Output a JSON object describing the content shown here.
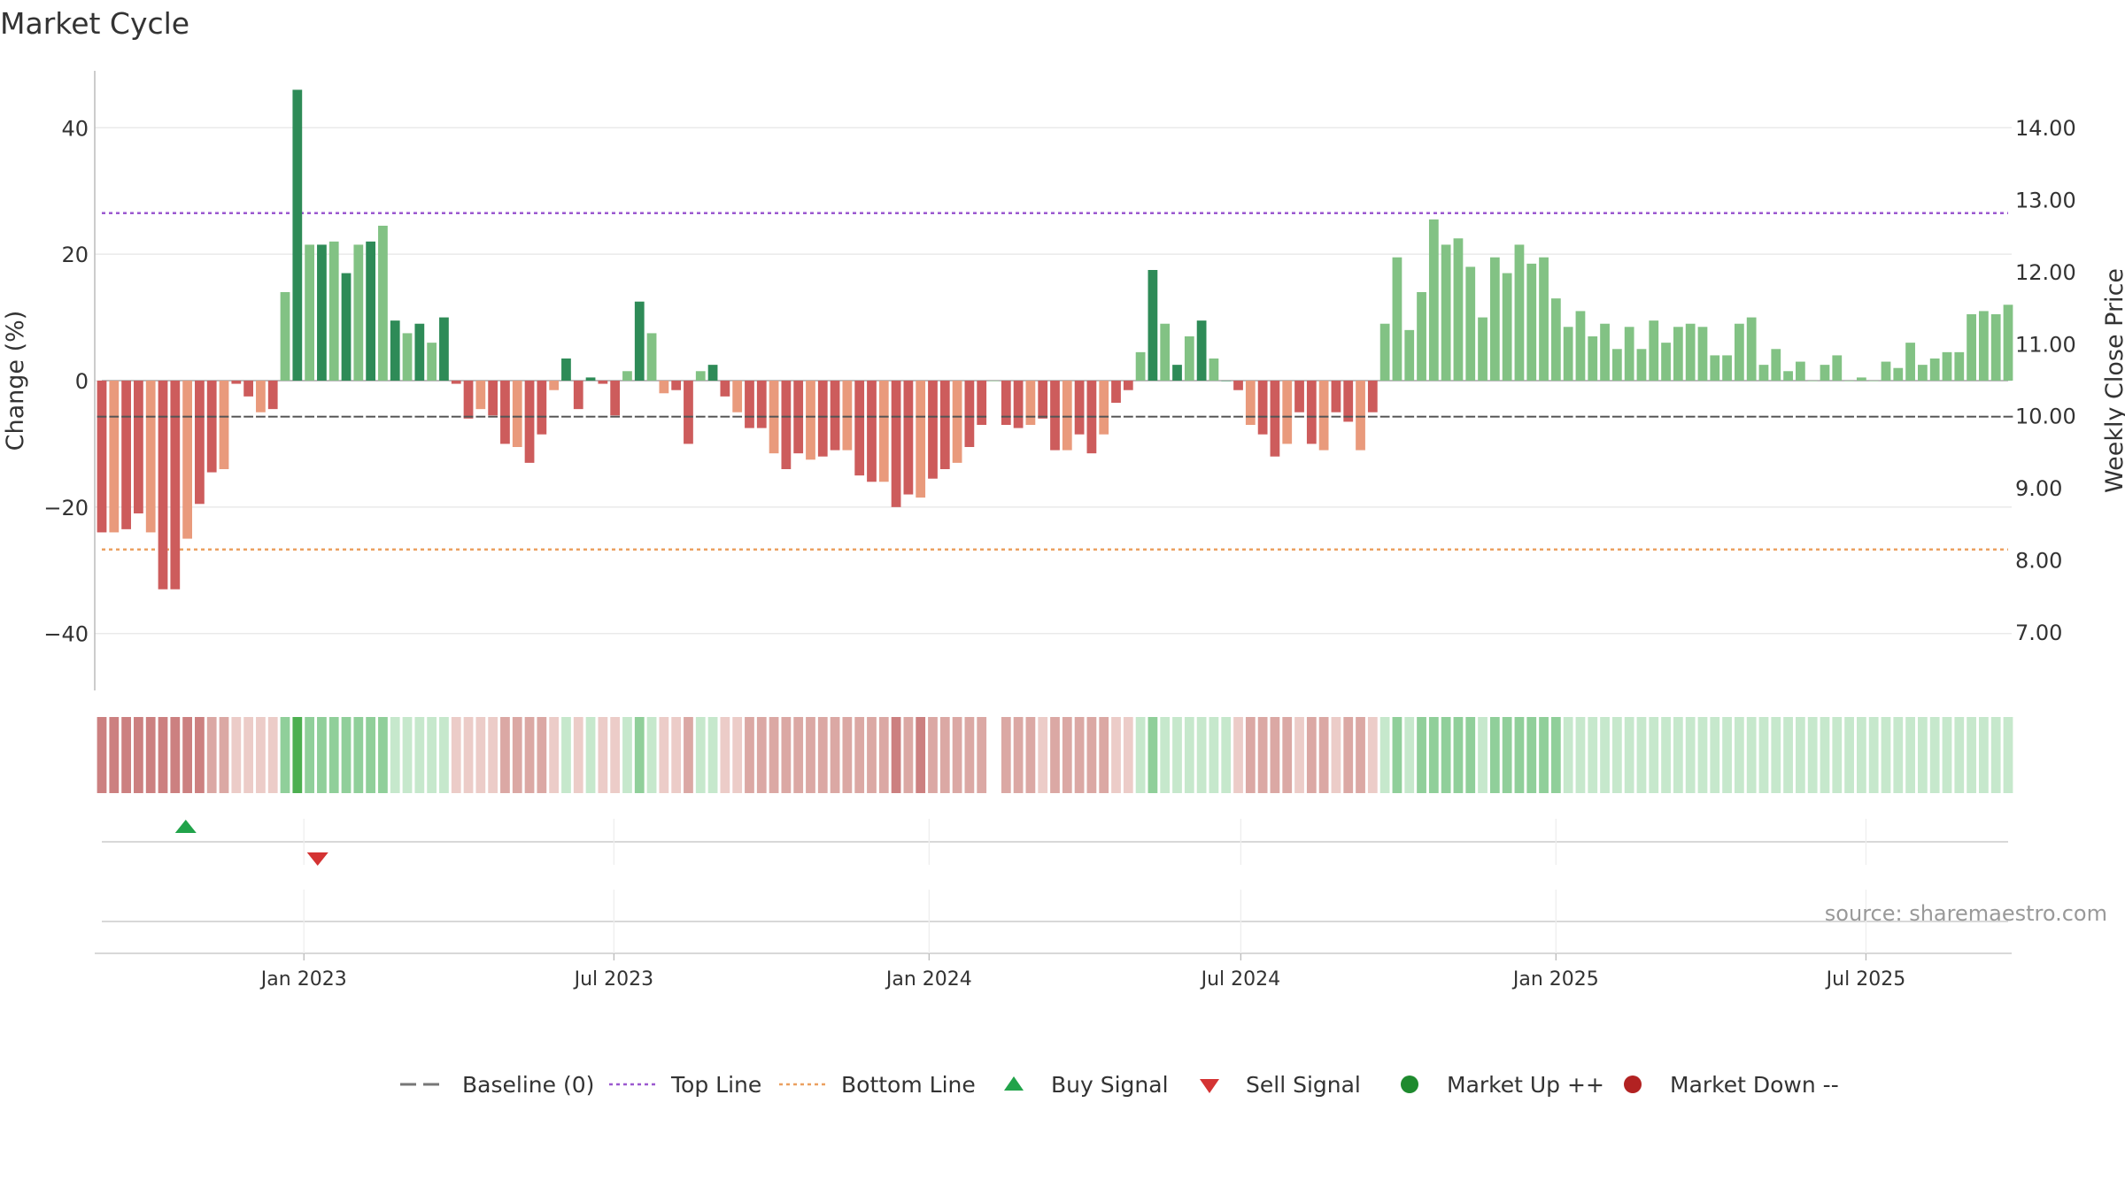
{
  "page": {
    "title": "Market Cycle"
  },
  "chart_data": {
    "type": "bar",
    "title": "Market Cycle",
    "ylabel": "Change (%)",
    "y2label": "Weekly Close Price",
    "ylim": [
      -49,
      49
    ],
    "y2lim": [
      6.2,
      14.8
    ],
    "yticks": [
      40,
      20,
      0,
      -20,
      -40
    ],
    "yticks_labels": [
      "40",
      "20",
      "0",
      "−20",
      "−40"
    ],
    "y2ticks": [
      14,
      13,
      12,
      11,
      10,
      9,
      8,
      7
    ],
    "y2ticks_labels": [
      "14.00",
      "13.00",
      "12.00",
      "11.00",
      "10.00",
      "9.00",
      "8.00",
      "7.00"
    ],
    "x_start_date": "2022-09-05",
    "x_end_date": "2025-09-22",
    "xticks": [
      {
        "date": "2023-01-01",
        "label": "Jan 2023"
      },
      {
        "date": "2023-07-01",
        "label": "Jul 2023"
      },
      {
        "date": "2024-01-01",
        "label": "Jan 2024"
      },
      {
        "date": "2024-07-01",
        "label": "Jul 2024"
      },
      {
        "date": "2025-01-01",
        "label": "Jan 2025"
      },
      {
        "date": "2025-07-01",
        "label": "Jul 2025"
      }
    ],
    "top_line": 26.5,
    "bottom_line": -26.7,
    "baseline": 0,
    "values": [
      -24,
      -24,
      -23.5,
      -21,
      -24,
      -33,
      -33,
      -25,
      -19.5,
      -14.5,
      -14,
      -0.5,
      -2.5,
      -5,
      -4.5,
      14,
      46,
      21.5,
      21.5,
      22,
      17,
      21.5,
      22,
      24.5,
      9.5,
      7.5,
      9,
      6,
      10,
      -0.5,
      -6,
      -4.5,
      -5.5,
      -10,
      -10.5,
      -13,
      -8.5,
      -1.5,
      3.5,
      -4.5,
      0.5,
      -0.5,
      -5.5,
      1.5,
      12.5,
      7.5,
      -2,
      -1.5,
      -10,
      1.5,
      2.5,
      -2.5,
      -5,
      -7.5,
      -7.5,
      -11.5,
      -14,
      -11.5,
      -12.5,
      -12,
      -11,
      -11,
      -15,
      -16,
      -16,
      -20,
      -18,
      -18.5,
      -15.5,
      -14,
      -13,
      -10.5,
      -7,
      0,
      -7,
      -7.5,
      -7,
      -6,
      -11,
      -11,
      -8.5,
      -11.5,
      -8.5,
      -3.5,
      -1.5,
      4.5,
      17.5,
      9,
      2.5,
      7,
      9.5,
      3.5,
      0,
      -1.5,
      -7,
      -8.5,
      -12,
      -10,
      -5,
      -10,
      -11,
      -5,
      -6.5,
      -11,
      -5,
      9,
      19.5,
      8,
      14,
      25.5,
      21.5,
      22.5,
      18,
      10,
      19.5,
      17,
      21.5,
      18.5,
      19.5,
      13,
      8.5,
      11,
      7,
      9,
      5,
      8.5,
      5,
      9.5,
      6,
      8.5,
      9,
      8.5,
      4,
      4,
      9,
      10,
      2.5,
      5,
      1.5,
      3,
      0,
      2.5,
      4,
      0,
      0.5,
      0,
      3,
      2,
      6,
      2.5,
      3.5,
      4.5,
      4.5,
      10.5,
      11,
      10.5,
      12
    ],
    "price_markers": [
      10.0,
      10.0,
      10.0,
      10.0,
      10.0,
      10.0,
      10.0,
      10.0,
      10.0,
      10.0,
      10.0,
      10.0,
      10.0,
      10.0,
      10.0,
      10.0,
      10.0,
      10.0,
      10.0,
      10.0,
      10.0,
      10.0,
      10.0,
      10.0,
      10.0,
      10.0,
      10.0,
      10.0,
      10.0,
      10.0,
      10.0,
      10.0,
      10.0,
      10.0,
      10.0,
      10.0,
      10.0,
      10.0,
      10.0,
      10.0,
      10.0,
      10.0,
      10.0,
      10.0,
      10.0,
      10.0,
      10.0,
      10.0,
      10.0,
      10.0,
      10.0,
      10.0,
      10.0,
      10.0,
      10.0,
      10.0,
      10.0,
      10.0,
      10.0,
      10.0,
      10.0,
      10.0,
      10.0,
      10.0,
      10.0,
      10.0,
      10.0,
      10.0,
      10.0,
      10.0,
      10.0,
      10.0,
      10.0,
      null,
      10.0,
      10.0,
      10.0,
      10.0,
      10.0,
      10.0,
      10.0,
      10.0,
      10.0,
      10.0,
      10.0,
      10.0,
      10.0,
      10.0,
      10.0,
      10.0,
      10.0,
      10.0,
      10.0,
      10.0,
      10.0,
      10.0,
      10.0,
      10.0,
      10.0,
      10.0,
      10.0,
      10.0,
      10.0,
      10.0,
      10.0,
      10.0,
      10.0,
      10.0,
      10.0,
      10.0,
      10.0,
      10.0,
      10.0,
      10.0,
      10.0,
      10.0,
      10.0,
      10.0,
      10.0,
      10.0,
      10.0,
      10.0,
      10.0,
      10.0,
      10.0,
      10.0,
      10.0,
      10.0,
      10.0,
      10.0,
      10.0,
      10.0,
      10.0,
      10.0,
      10.0,
      10.0,
      10.0,
      10.0,
      10.0,
      10.0,
      10.0,
      10.0,
      10.0,
      10.0,
      10.0,
      10.0,
      10.0,
      10.0,
      10.0,
      10.0,
      10.0,
      10.0,
      10.0,
      10.0,
      10.0,
      10.0,
      10.0
    ],
    "signals": [
      {
        "type": "buy",
        "date": "2022-10-24"
      },
      {
        "type": "sell",
        "date": "2023-01-09"
      }
    ],
    "colors": {
      "up_strong": "#2e8b57",
      "up_light": "#82c284",
      "down_strong": "#cd5c5c",
      "down_light": "#e99a7c",
      "heat_up_strong": "#4caf50",
      "heat_up": "#90cf9a",
      "heat_up_light": "#c6e8cc",
      "heat_down_strong": "#cc8080",
      "heat_down": "#dba8a4",
      "heat_down_light": "#ecccc8",
      "top_line": "#9b59d0",
      "bottom_line": "#eba060",
      "buy": "#21a34a",
      "sell": "#d43333",
      "market_up": "#1e8a2e",
      "market_down": "#b22222",
      "baseline": "#777777",
      "grid": "#e6e6e6"
    },
    "legend": [
      {
        "key": "baseline",
        "label": "Baseline (0)",
        "marker": "dash"
      },
      {
        "key": "top_line",
        "label": "Top Line",
        "marker": "dotted"
      },
      {
        "key": "bottom_line",
        "label": "Bottom Line",
        "marker": "dotted"
      },
      {
        "key": "buy",
        "label": "Buy Signal",
        "marker": "triangle-up"
      },
      {
        "key": "sell",
        "label": "Sell Signal",
        "marker": "triangle-down"
      },
      {
        "key": "market_up",
        "label": "Market Up ++",
        "marker": "circle"
      },
      {
        "key": "market_down",
        "label": "Market Down --",
        "marker": "circle"
      }
    ],
    "legend_position": "bottom-center",
    "source": "source: sharemaestro.com",
    "grid": true
  }
}
